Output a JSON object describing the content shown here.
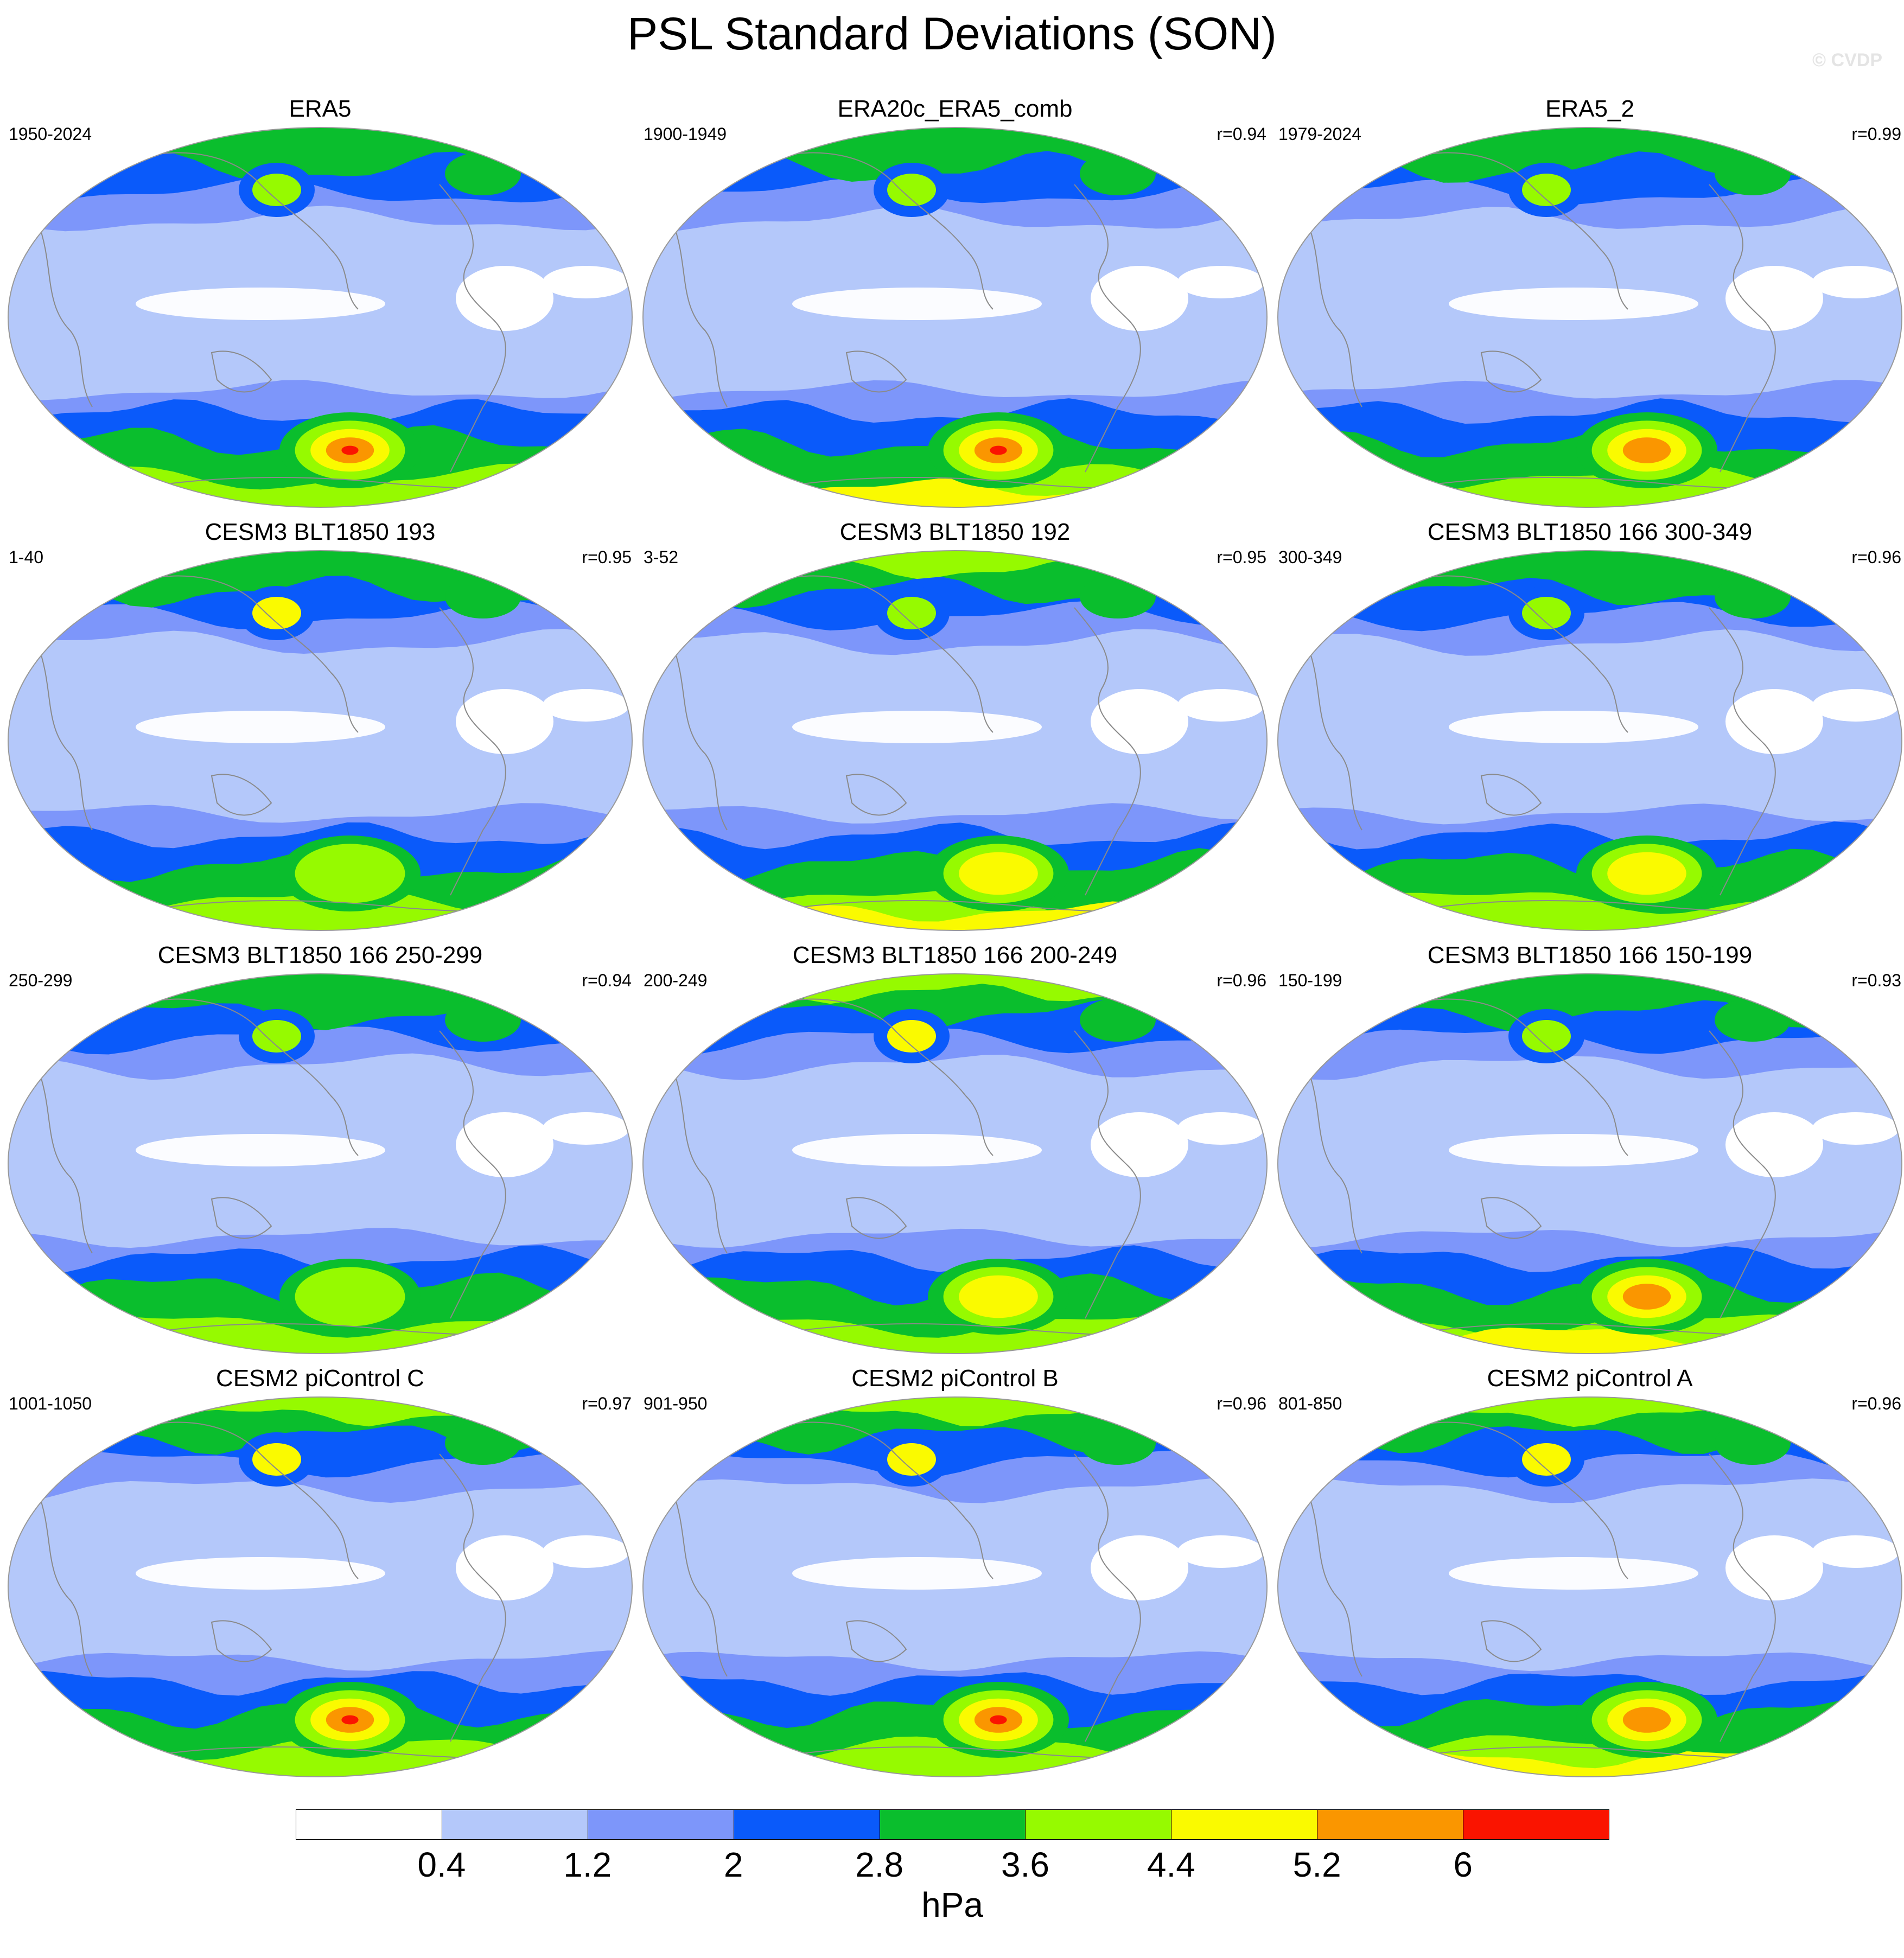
{
  "title": "PSL Standard Deviations (SON)",
  "watermark": "© CVDP",
  "colorbar": {
    "unit": "hPa",
    "levels": [
      "0.4",
      "1.2",
      "2",
      "2.8",
      "3.6",
      "4.4",
      "5.2",
      "6"
    ],
    "colors": [
      "#ffffff",
      "#b4c8fa",
      "#7d96fa",
      "#0a5afa",
      "#0abe2d",
      "#96fa00",
      "#fafa00",
      "#fa9600",
      "#fa1400"
    ]
  },
  "map_style": {
    "ocean_base": "#b4c8fa",
    "coastline": "#8a8a8a",
    "outline": "#999999"
  },
  "panels": [
    {
      "title": "ERA5",
      "period": "1950-2024",
      "corr": "",
      "north_level": 3,
      "south_level": 3,
      "south_peak": 6.0,
      "north_peak": 3.9,
      "tropical_min": 0.9
    },
    {
      "title": "ERA20c_ERA5_comb",
      "period": "1900-1949",
      "corr": "r=0.94",
      "north_level": 3,
      "south_level": 4,
      "south_peak": 7.0,
      "north_peak": 4.1,
      "tropical_min": 0.9
    },
    {
      "title": "ERA5_2",
      "period": "1979-2024",
      "corr": "r=0.99",
      "north_level": 3,
      "south_level": 3,
      "south_peak": 5.8,
      "north_peak": 3.9,
      "tropical_min": 0.9
    },
    {
      "title": "CESM3 BLT1850 193",
      "period": "1-40",
      "corr": "r=0.95",
      "north_level": 3,
      "south_level": 3,
      "south_peak": 4.2,
      "north_peak": 4.4,
      "tropical_min": 0.8
    },
    {
      "title": "CESM3 BLT1850 192",
      "period": "3-52",
      "corr": "r=0.95",
      "north_level": 4,
      "south_level": 4,
      "south_peak": 5.0,
      "north_peak": 4.0,
      "tropical_min": 0.9
    },
    {
      "title": "CESM3 BLT1850 166 300-349",
      "period": "300-349",
      "corr": "r=0.96",
      "north_level": 3,
      "south_level": 3,
      "south_peak": 5.0,
      "north_peak": 3.9,
      "tropical_min": 0.9
    },
    {
      "title": "CESM3 BLT1850 166 250-299",
      "period": "250-299",
      "corr": "r=0.94",
      "north_level": 3,
      "south_level": 3,
      "south_peak": 4.3,
      "north_peak": 4.2,
      "tropical_min": 0.8
    },
    {
      "title": "CESM3 BLT1850 166 200-249",
      "period": "200-249",
      "corr": "r=0.96",
      "north_level": 4,
      "south_level": 3,
      "south_peak": 4.8,
      "north_peak": 4.5,
      "tropical_min": 0.8
    },
    {
      "title": "CESM3 BLT1850 166 150-199",
      "period": "150-199",
      "corr": "r=0.93",
      "north_level": 3,
      "south_level": 4,
      "south_peak": 5.3,
      "north_peak": 3.9,
      "tropical_min": 0.9
    },
    {
      "title": "CESM2 piControl C",
      "period": "1001-1050",
      "corr": "r=0.97",
      "north_level": 4,
      "south_level": 3,
      "south_peak": 6.0,
      "north_peak": 5.0,
      "tropical_min": 0.9
    },
    {
      "title": "CESM2 piControl B",
      "period": "901-950",
      "corr": "r=0.96",
      "north_level": 4,
      "south_level": 3,
      "south_peak": 6.5,
      "north_peak": 4.6,
      "tropical_min": 0.9
    },
    {
      "title": "CESM2 piControl A",
      "period": "801-850",
      "corr": "r=0.96",
      "north_level": 4,
      "south_level": 4,
      "south_peak": 5.8,
      "north_peak": 4.6,
      "tropical_min": 0.9
    }
  ]
}
